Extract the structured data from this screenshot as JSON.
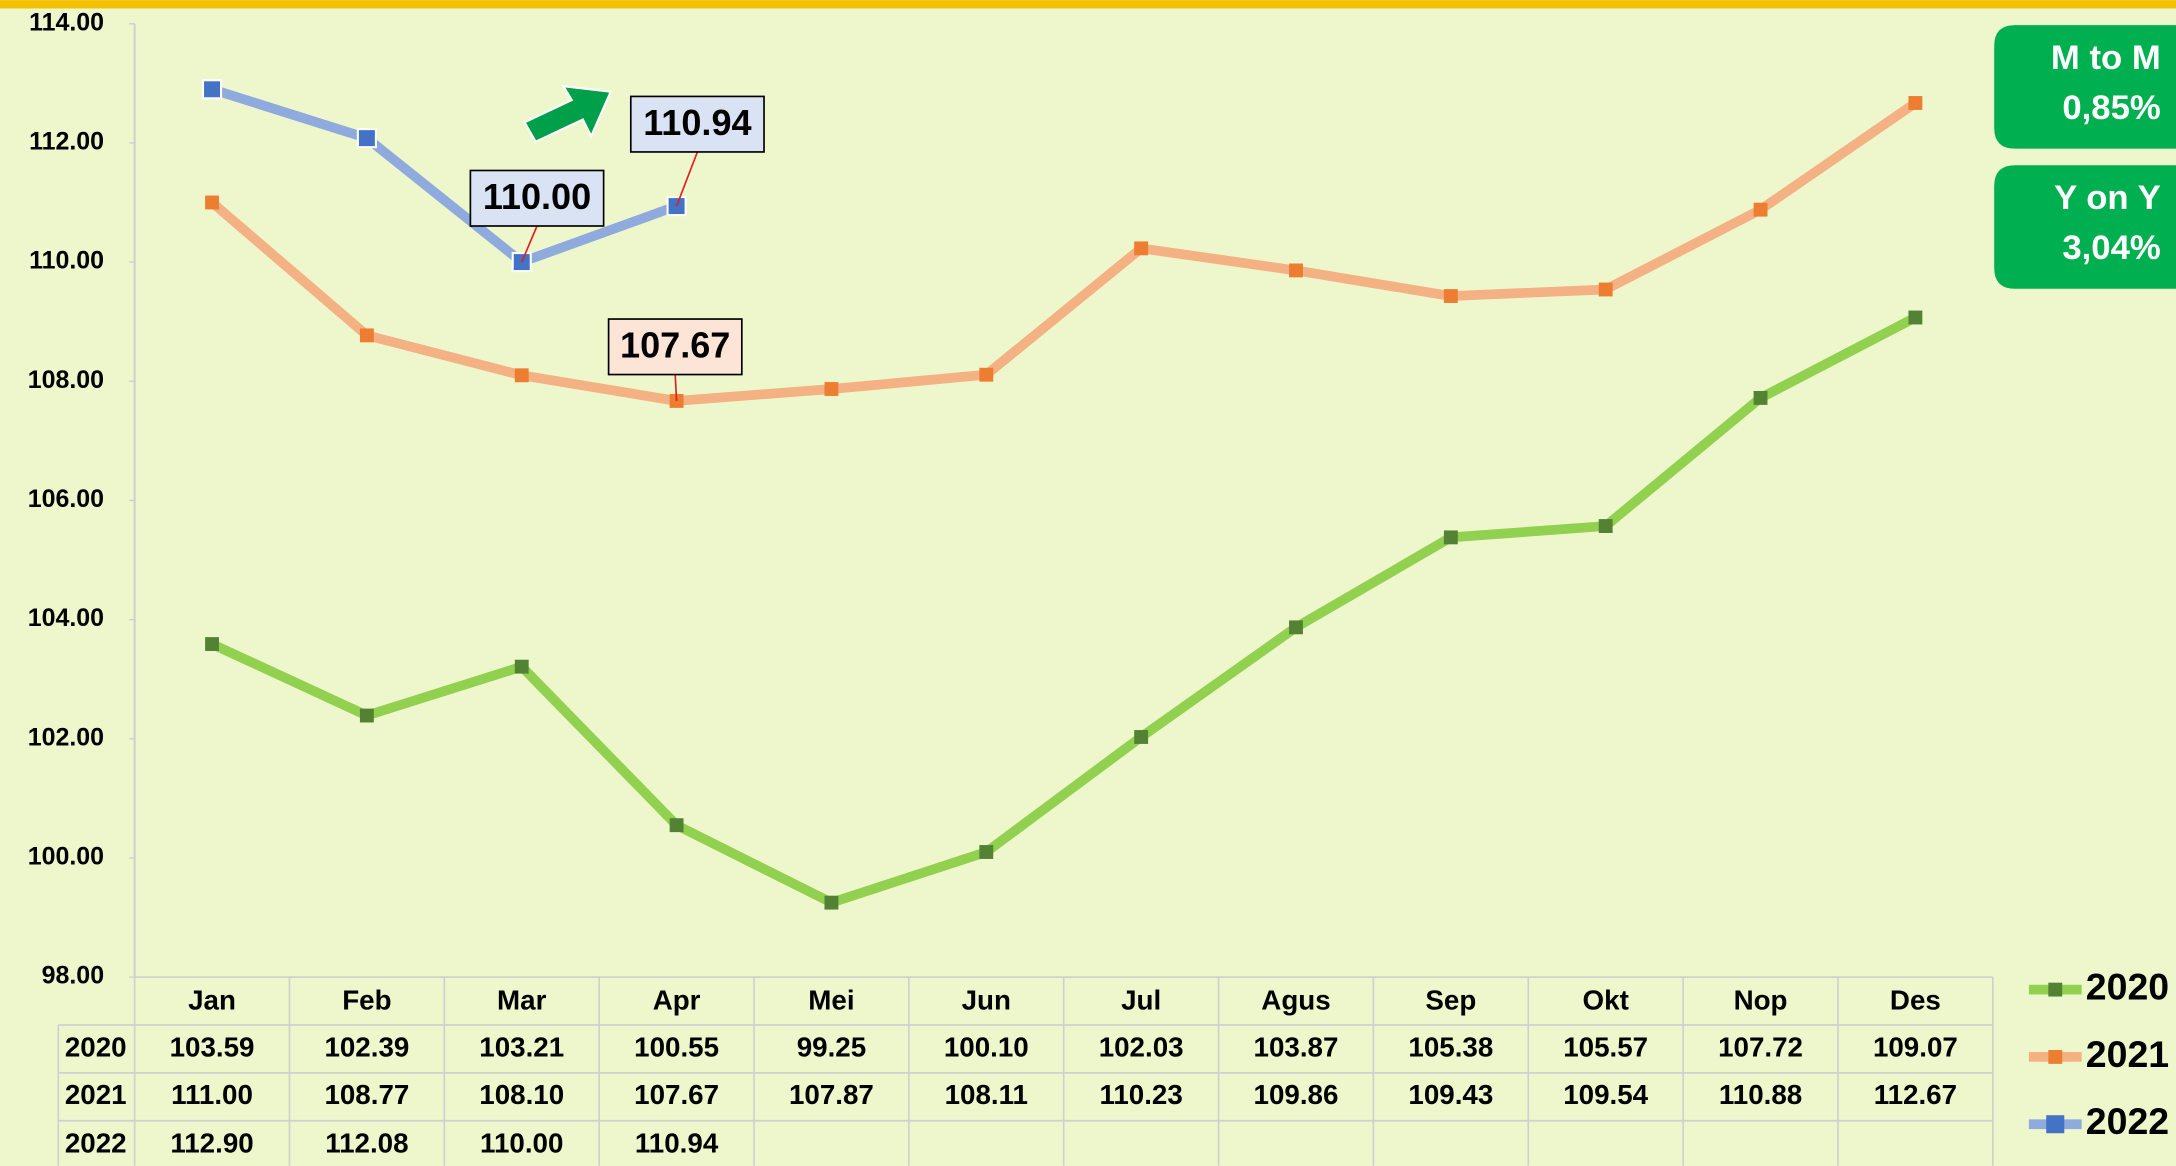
{
  "chart_data": {
    "type": "line",
    "categories": [
      "Jan",
      "Feb",
      "Mar",
      "Apr",
      "Mei",
      "Jun",
      "Jul",
      "Agus",
      "Sep",
      "Okt",
      "Nop",
      "Des"
    ],
    "series": [
      {
        "name": "2020",
        "color": "#92d050",
        "marker_color": "#548235",
        "values": [
          103.59,
          102.39,
          103.21,
          100.55,
          99.25,
          100.1,
          102.03,
          103.87,
          105.38,
          105.57,
          107.72,
          109.07
        ],
        "value_labels": [
          "103.59",
          "102.39",
          "103.21",
          "100.55",
          "99.25",
          "100.10",
          "102.03",
          "103.87",
          "105.38",
          "105.57",
          "107.72",
          "109.07"
        ]
      },
      {
        "name": "2021",
        "color": "#f4b183",
        "marker_color": "#ed7d31",
        "values": [
          111.0,
          108.77,
          108.1,
          107.67,
          107.87,
          108.11,
          110.23,
          109.86,
          109.43,
          109.54,
          110.88,
          112.67
        ],
        "value_labels": [
          "111.00",
          "108.77",
          "108.10",
          "107.67",
          "107.87",
          "108.11",
          "110.23",
          "109.86",
          "109.43",
          "109.54",
          "110.88",
          "112.67"
        ]
      },
      {
        "name": "2022",
        "color": "#8faadc",
        "marker_color": "#4472c4",
        "values": [
          112.9,
          112.08,
          110.0,
          110.94,
          null,
          null,
          null,
          null,
          null,
          null,
          null,
          null
        ],
        "value_labels": [
          "112.90",
          "112.08",
          "110.00",
          "110.94",
          null,
          null,
          null,
          null,
          null,
          null,
          null,
          null
        ]
      }
    ],
    "ylim": [
      98,
      114
    ],
    "yticks": [
      {
        "value": 98,
        "label": "98.00"
      },
      {
        "value": 100,
        "label": "100.00"
      },
      {
        "value": 102,
        "label": "102.00"
      },
      {
        "value": 104,
        "label": "104.00"
      },
      {
        "value": 106,
        "label": "106.00"
      },
      {
        "value": 108,
        "label": "108.00"
      },
      {
        "value": 110,
        "label": "110.00"
      },
      {
        "value": 112,
        "label": "112.00"
      },
      {
        "value": 114,
        "label": "114.00"
      }
    ],
    "annotations": [
      {
        "label": "M to M",
        "value": "0,85%"
      },
      {
        "label": "Y on Y",
        "value": "3,04%"
      }
    ],
    "legend": "right"
  }
}
